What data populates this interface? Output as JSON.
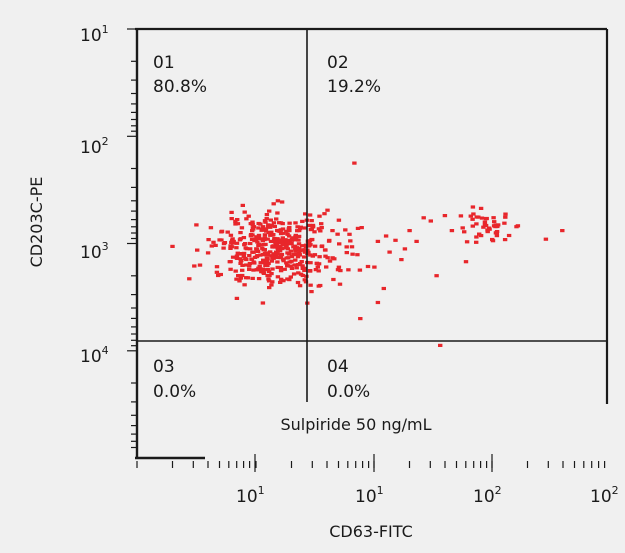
{
  "chart_data": {
    "type": "scatter",
    "xlabel": "CD63-FITC",
    "ylabel": "CD203C-PE",
    "x_axis": {
      "scale": "log",
      "ticks": [
        {
          "base": "10",
          "exp": "1"
        },
        {
          "base": "10",
          "exp": "1"
        },
        {
          "base": "10",
          "exp": "2"
        },
        {
          "base": "10",
          "exp": "2"
        }
      ]
    },
    "y_axis": {
      "scale": "log",
      "ticks": [
        {
          "base": "10",
          "exp": "1"
        },
        {
          "base": "10",
          "exp": "2"
        },
        {
          "base": "10",
          "exp": "3"
        },
        {
          "base": "10",
          "exp": "4"
        }
      ]
    },
    "quadrants": [
      {
        "id": "01",
        "percent": "80.8%"
      },
      {
        "id": "02",
        "percent": "19.2%"
      },
      {
        "id": "03",
        "percent": "0.0%"
      },
      {
        "id": "04",
        "percent": "0.0%"
      }
    ],
    "annotation": "Sulpiride 50 ng/mL",
    "series_color": "#e8262b",
    "clusters": [
      {
        "cx": 1.18,
        "cy": 3.05,
        "sx": 0.27,
        "sy": 0.17,
        "n": 470
      },
      {
        "cx": 2.98,
        "cy": 2.83,
        "sx": 0.1,
        "sy": 0.07,
        "n": 48
      }
    ],
    "scatter_points": [
      [
        2.05,
        2.98
      ],
      [
        2.12,
        2.93
      ],
      [
        2.2,
        2.97
      ],
      [
        2.28,
        3.05
      ],
      [
        2.38,
        2.98
      ],
      [
        2.5,
        2.79
      ],
      [
        2.62,
        2.74
      ],
      [
        2.32,
        2.88
      ],
      [
        2.44,
        2.76
      ],
      [
        2.68,
        2.88
      ],
      [
        2.02,
        3.22
      ],
      [
        2.25,
        3.15
      ],
      [
        2.15,
        3.08
      ],
      [
        2.8,
        3.17
      ],
      [
        2.55,
        3.3
      ],
      [
        2.58,
        3.95
      ],
      [
        2.1,
        3.42
      ],
      [
        2.05,
        3.55
      ],
      [
        1.85,
        2.25
      ],
      [
        1.9,
        3.7
      ],
      [
        3.48,
        2.96
      ],
      [
        3.62,
        2.88
      ]
    ],
    "x_range": [
      0,
      4
    ],
    "y_range": [
      1,
      5
    ]
  }
}
